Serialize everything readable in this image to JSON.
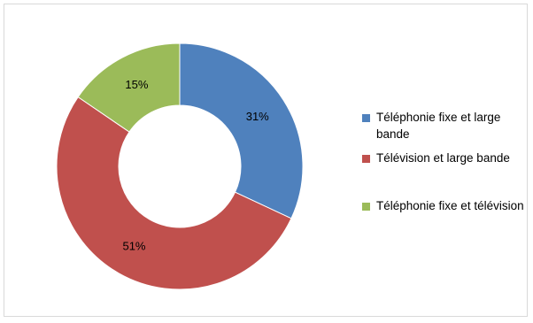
{
  "chart_data": {
    "type": "pie",
    "variant": "donut",
    "categories": [
      "Téléphonie fixe et large bande",
      "Télévision et large bande",
      "Téléphonie fixe et télévision"
    ],
    "values": [
      31,
      51,
      15
    ],
    "data_labels": [
      "31%",
      "51%",
      "15%"
    ],
    "colors": [
      "#4f81bd",
      "#c0504d",
      "#9bbb59"
    ],
    "legend_position": "right"
  }
}
